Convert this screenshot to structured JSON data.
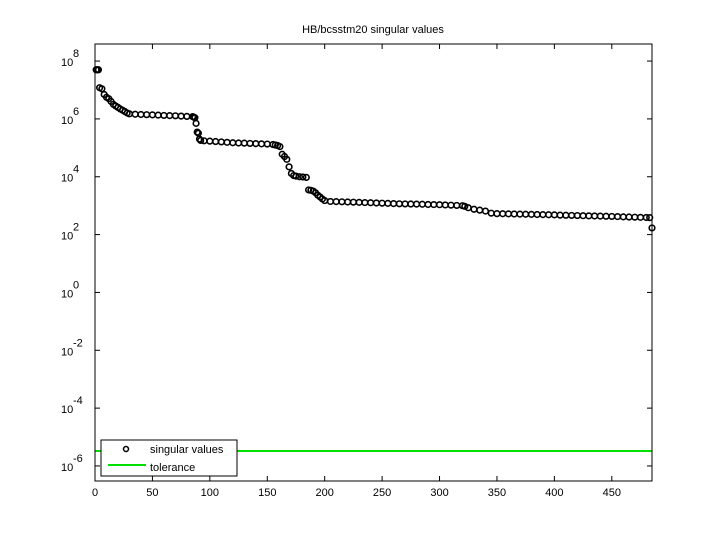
{
  "chart_data": {
    "type": "scatter",
    "title": "HB/bcsstm20 singular values",
    "xlabel": "",
    "ylabel": "",
    "xlim": [
      0,
      485
    ],
    "ylim_log10": [
      -6.52,
      8.59
    ],
    "yscale": "log",
    "grid": false,
    "legend_placement": "bottom-left",
    "x_ticks": [
      "0",
      "50",
      "100",
      "150",
      "200",
      "250",
      "300",
      "350",
      "400",
      "450"
    ],
    "x_tick_values": [
      0,
      50,
      100,
      150,
      200,
      250,
      300,
      350,
      400,
      450
    ],
    "y_tick_exponents": [
      "8",
      "6",
      "4",
      "2",
      "0",
      "-2",
      "-4",
      "-6"
    ],
    "y_tick_base": "10",
    "series": [
      {
        "name": "singular values",
        "marker": "circle-open",
        "color": "#000000",
        "x": [
          1,
          2,
          3,
          4,
          6,
          8,
          10,
          12,
          14,
          16,
          18,
          20,
          22,
          24,
          26,
          28,
          30,
          35,
          40,
          45,
          50,
          55,
          60,
          65,
          70,
          75,
          80,
          85,
          86,
          87,
          88,
          89,
          90,
          91,
          92,
          95,
          100,
          105,
          110,
          115,
          120,
          125,
          130,
          135,
          140,
          145,
          150,
          155,
          157,
          159,
          161,
          163,
          165,
          167,
          169,
          171,
          173,
          175,
          178,
          181,
          184,
          186,
          188,
          190,
          192,
          194,
          196,
          198,
          200,
          205,
          210,
          215,
          220,
          225,
          230,
          235,
          240,
          245,
          250,
          255,
          260,
          265,
          270,
          275,
          280,
          285,
          290,
          295,
          300,
          305,
          310,
          315,
          320,
          322,
          325,
          330,
          335,
          340,
          345,
          350,
          355,
          360,
          365,
          370,
          375,
          380,
          385,
          390,
          395,
          400,
          405,
          410,
          415,
          420,
          425,
          430,
          435,
          440,
          445,
          450,
          455,
          460,
          465,
          470,
          475,
          480,
          483,
          485
        ],
        "y": [
          50000000.0,
          50000000.0,
          50000000.0,
          12000000.0,
          11000000.0,
          7000000.0,
          5600000.0,
          5000000.0,
          4000000.0,
          3200000.0,
          2800000.0,
          2500000.0,
          2200000.0,
          2000000.0,
          1800000.0,
          1600000.0,
          1500000.0,
          1450000.0,
          1420000.0,
          1400000.0,
          1380000.0,
          1350000.0,
          1320000.0,
          1300000.0,
          1280000.0,
          1250000.0,
          1220000.0,
          1200000.0,
          1150000.0,
          1100000.0,
          700000.0,
          350000.0,
          320000.0,
          200000.0,
          180000.0,
          175000.0,
          170000.0,
          165000.0,
          160000.0,
          155000.0,
          150000.0,
          147000.0,
          145000.0,
          142000.0,
          140000.0,
          137000.0,
          135000.0,
          130000.0,
          125000.0,
          120000.0,
          110000.0,
          60000.0,
          50000.0,
          40000.0,
          22000.0,
          13000.0,
          11000.0,
          10500.0,
          10000.0,
          9800.0,
          9500.0,
          3500.0,
          3400.0,
          3200.0,
          2800.0,
          2300.0,
          2000.0,
          1700.0,
          1500.0,
          1400,
          1380,
          1360,
          1340,
          1320,
          1300,
          1280,
          1260,
          1240,
          1220,
          1200,
          1180,
          1160,
          1150,
          1140,
          1130,
          1120,
          1100,
          1090,
          1080,
          1060,
          1040,
          1020,
          1000,
          950,
          850,
          750,
          700,
          650,
          550,
          530,
          525,
          520,
          515,
          510,
          505,
          500,
          495,
          490,
          485,
          480,
          470,
          465,
          460,
          455,
          450,
          445,
          440,
          435,
          430,
          425,
          420,
          410,
          405,
          400,
          395,
          390,
          385,
          170
        ]
      },
      {
        "name": "tolerance",
        "marker": "line",
        "color": "#00e000",
        "y_constant": 3.3e-06
      }
    ]
  }
}
